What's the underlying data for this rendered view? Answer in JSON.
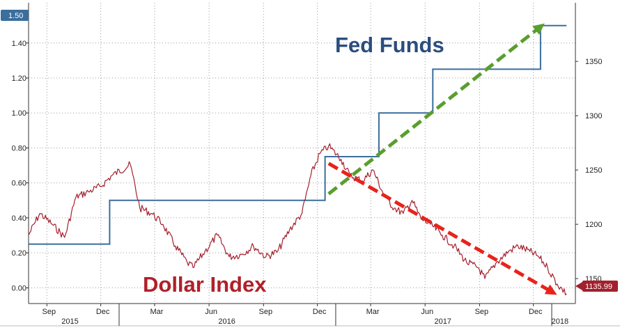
{
  "chart_data": {
    "type": "line",
    "series": [
      {
        "role": "fed_funds",
        "color": "#3a6e9c",
        "step": true,
        "axis": "left",
        "x": [
          "2015-08-01",
          "2015-12-16",
          "2016-12-14",
          "2017-03-15",
          "2017-06-14",
          "2017-12-13",
          "2018-01-26"
        ],
        "values": [
          0.25,
          0.5,
          0.75,
          1.0,
          1.25,
          1.5,
          1.5
        ]
      },
      {
        "role": "dollar_index",
        "color": "#a3202e",
        "axis": "right",
        "x": [
          "2015-08-01",
          "2015-08-20",
          "2015-09-10",
          "2015-10-01",
          "2015-10-20",
          "2015-11-10",
          "2015-12-01",
          "2015-12-20",
          "2016-01-20",
          "2016-02-05",
          "2016-02-25",
          "2016-03-15",
          "2016-04-05",
          "2016-04-25",
          "2016-05-05",
          "2016-05-25",
          "2016-06-15",
          "2016-07-05",
          "2016-07-25",
          "2016-08-15",
          "2016-09-05",
          "2016-09-25",
          "2016-10-15",
          "2016-11-05",
          "2016-11-20",
          "2016-12-05",
          "2016-12-20",
          "2017-01-10",
          "2017-01-25",
          "2017-02-15",
          "2017-03-05",
          "2017-03-25",
          "2017-04-10",
          "2017-04-25",
          "2017-05-10",
          "2017-05-25",
          "2017-06-10",
          "2017-06-30",
          "2017-07-20",
          "2017-08-10",
          "2017-08-30",
          "2017-09-10",
          "2017-09-30",
          "2017-10-20",
          "2017-11-05",
          "2017-11-25",
          "2017-12-10",
          "2017-12-25",
          "2018-01-10",
          "2018-01-26"
        ],
        "values": [
          1190,
          1210,
          1200,
          1188,
          1225,
          1230,
          1235,
          1245,
          1255,
          1215,
          1210,
          1200,
          1180,
          1165,
          1160,
          1175,
          1190,
          1170,
          1172,
          1180,
          1170,
          1175,
          1195,
          1210,
          1245,
          1265,
          1272,
          1260,
          1245,
          1240,
          1250,
          1225,
          1215,
          1210,
          1222,
          1205,
          1200,
          1190,
          1180,
          1165,
          1160,
          1150,
          1165,
          1175,
          1180,
          1175,
          1170,
          1160,
          1145,
          1135.99
        ]
      }
    ],
    "left_axis": {
      "ticks": [
        "0.00",
        "0.20",
        "0.40",
        "0.60",
        "0.80",
        "1.00",
        "1.20",
        "1.40"
      ],
      "values": [
        0,
        0.2,
        0.4,
        0.6,
        0.8,
        1.0,
        1.2,
        1.4
      ],
      "range": [
        -0.09,
        1.63
      ]
    },
    "right_axis": {
      "ticks": [
        "1150",
        "1200",
        "1250",
        "1300",
        "1350"
      ],
      "values": [
        1150,
        1200,
        1250,
        1300,
        1350
      ],
      "range": [
        1127,
        1404
      ]
    },
    "x_axis": {
      "months": [
        {
          "label": "Sep",
          "date": "2015-09-01"
        },
        {
          "label": "Dec",
          "date": "2015-12-01"
        },
        {
          "label": "Mar",
          "date": "2016-03-01"
        },
        {
          "label": "Jun",
          "date": "2016-06-01"
        },
        {
          "label": "Sep",
          "date": "2016-09-01"
        },
        {
          "label": "Dec",
          "date": "2016-12-01"
        },
        {
          "label": "Mar",
          "date": "2017-03-01"
        },
        {
          "label": "Jun",
          "date": "2017-06-01"
        },
        {
          "label": "Sep",
          "date": "2017-09-01"
        },
        {
          "label": "Dec",
          "date": "2017-12-01"
        }
      ],
      "years": [
        {
          "label": "2015",
          "date": "2015-10-10"
        },
        {
          "label": "2016",
          "date": "2016-07-01"
        },
        {
          "label": "2017",
          "date": "2017-07-01"
        },
        {
          "label": "2018",
          "date": "2018-01-15"
        }
      ],
      "year_breaks": [
        "2016-01-01",
        "2017-01-01",
        "2018-01-01"
      ],
      "range": [
        "2015-08-01",
        "2018-02-10"
      ]
    },
    "annotations": [
      {
        "text": "Fed Funds",
        "color": "#2b4d7e"
      },
      {
        "text": "Dollar Index",
        "color": "#b0202a"
      }
    ],
    "trend_arrows": [
      {
        "color": "#5a9e2f",
        "from": {
          "x": "2016-12-20",
          "y": 1228
        },
        "to": {
          "x": "2017-12-20",
          "y": 1385
        }
      },
      {
        "color": "#e8231a",
        "from": {
          "x": "2016-12-20",
          "y": 1256
        },
        "to": {
          "x": "2018-01-10",
          "y": 1135
        }
      }
    ],
    "last_value_badges": [
      {
        "axis": "left",
        "value": "1.50",
        "color": "#3a6e9c"
      },
      {
        "axis": "right",
        "value": "1135.99",
        "color": "#a3202e"
      }
    ],
    "grid": true
  }
}
